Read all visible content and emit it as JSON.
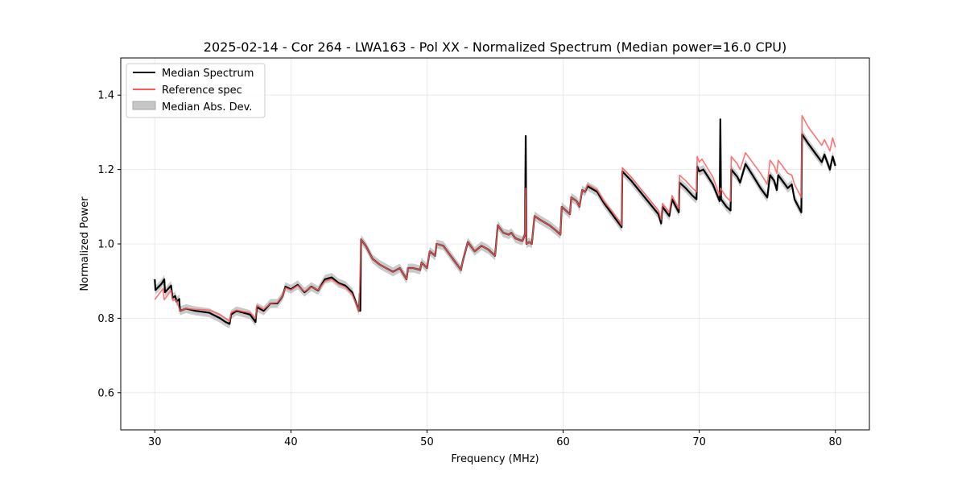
{
  "chart_data": {
    "type": "line",
    "title": "2025-02-14 - Cor 264 - LWA163 - Pol XX - Normalized Spectrum (Median power=16.0 CPU)",
    "xlabel": "Frequency (MHz)",
    "ylabel": "Normalized Power",
    "xlim": [
      27.5,
      82.5
    ],
    "ylim": [
      0.5,
      1.5
    ],
    "xticks": [
      30,
      40,
      50,
      60,
      70,
      80
    ],
    "yticks": [
      0.6,
      0.8,
      1.0,
      1.2,
      1.4
    ],
    "xtick_labels": [
      "30",
      "40",
      "50",
      "60",
      "70",
      "80"
    ],
    "ytick_labels": [
      "0.6",
      "0.8",
      "1.0",
      "1.2",
      "1.4"
    ],
    "grid": true,
    "legend_position": "top-left",
    "legend": [
      "Median Spectrum",
      "Reference spec",
      "Median Abs. Dev."
    ],
    "colors": {
      "median": "#000000",
      "reference": "#ff5a5a",
      "mad": "#b4b4b4"
    },
    "mad_halfwidth": 0.012,
    "series": [
      {
        "name": "Median Spectrum",
        "points": [
          [
            30.0,
            0.905
          ],
          [
            30.05,
            0.876
          ],
          [
            30.5,
            0.893
          ],
          [
            30.7,
            0.905
          ],
          [
            30.75,
            0.87
          ],
          [
            31.0,
            0.88
          ],
          [
            31.2,
            0.888
          ],
          [
            31.3,
            0.855
          ],
          [
            31.5,
            0.86
          ],
          [
            31.6,
            0.845
          ],
          [
            31.8,
            0.852
          ],
          [
            31.85,
            0.82
          ],
          [
            32.3,
            0.826
          ],
          [
            33.0,
            0.82
          ],
          [
            34.0,
            0.815
          ],
          [
            34.8,
            0.8
          ],
          [
            35.2,
            0.79
          ],
          [
            35.5,
            0.785
          ],
          [
            35.6,
            0.81
          ],
          [
            36.0,
            0.82
          ],
          [
            36.5,
            0.815
          ],
          [
            37.0,
            0.81
          ],
          [
            37.4,
            0.79
          ],
          [
            37.5,
            0.83
          ],
          [
            38.0,
            0.82
          ],
          [
            38.5,
            0.84
          ],
          [
            39.0,
            0.84
          ],
          [
            39.4,
            0.86
          ],
          [
            39.6,
            0.885
          ],
          [
            40.0,
            0.878
          ],
          [
            40.5,
            0.89
          ],
          [
            41.0,
            0.87
          ],
          [
            41.5,
            0.885
          ],
          [
            42.0,
            0.875
          ],
          [
            42.5,
            0.905
          ],
          [
            43.0,
            0.91
          ],
          [
            43.5,
            0.895
          ],
          [
            44.0,
            0.888
          ],
          [
            44.5,
            0.87
          ],
          [
            45.0,
            0.82
          ],
          [
            45.05,
            0.865
          ],
          [
            45.1,
            0.82
          ],
          [
            45.15,
            1.012
          ],
          [
            45.5,
            0.995
          ],
          [
            46.0,
            0.96
          ],
          [
            46.5,
            0.945
          ],
          [
            47.0,
            0.935
          ],
          [
            47.5,
            0.925
          ],
          [
            48.0,
            0.935
          ],
          [
            48.5,
            0.905
          ],
          [
            48.6,
            0.935
          ],
          [
            49.0,
            0.935
          ],
          [
            49.5,
            0.93
          ],
          [
            49.6,
            0.95
          ],
          [
            50.0,
            0.935
          ],
          [
            50.2,
            0.98
          ],
          [
            50.6,
            0.968
          ],
          [
            50.7,
            1.0
          ],
          [
            51.2,
            0.995
          ],
          [
            51.5,
            0.98
          ],
          [
            52.0,
            0.955
          ],
          [
            52.5,
            0.93
          ],
          [
            52.6,
            0.95
          ],
          [
            53.0,
            1.005
          ],
          [
            53.5,
            0.98
          ],
          [
            54.0,
            0.995
          ],
          [
            54.5,
            0.985
          ],
          [
            55.0,
            0.968
          ],
          [
            55.2,
            1.05
          ],
          [
            55.6,
            1.03
          ],
          [
            56.0,
            1.025
          ],
          [
            56.2,
            1.03
          ],
          [
            56.5,
            1.015
          ],
          [
            57.0,
            1.008
          ],
          [
            57.2,
            1.025
          ],
          [
            57.25,
            1.29
          ],
          [
            57.3,
            1.0
          ],
          [
            57.5,
            1.005
          ],
          [
            57.7,
            1.0
          ],
          [
            57.9,
            1.075
          ],
          [
            58.3,
            1.065
          ],
          [
            59.0,
            1.05
          ],
          [
            59.5,
            1.035
          ],
          [
            59.8,
            1.025
          ],
          [
            59.9,
            1.1
          ],
          [
            60.5,
            1.08
          ],
          [
            60.6,
            1.125
          ],
          [
            61.0,
            1.115
          ],
          [
            61.2,
            1.1
          ],
          [
            61.4,
            1.145
          ],
          [
            61.6,
            1.14
          ],
          [
            61.8,
            1.155
          ],
          [
            62.5,
            1.14
          ],
          [
            63.0,
            1.11
          ],
          [
            64.0,
            1.06
          ],
          [
            64.3,
            1.045
          ],
          [
            64.35,
            1.195
          ],
          [
            65.0,
            1.17
          ],
          [
            66.0,
            1.125
          ],
          [
            67.0,
            1.08
          ],
          [
            67.2,
            1.055
          ],
          [
            67.3,
            1.1
          ],
          [
            67.8,
            1.075
          ],
          [
            68.0,
            1.12
          ],
          [
            68.5,
            1.085
          ],
          [
            68.55,
            1.165
          ],
          [
            69.0,
            1.15
          ],
          [
            69.5,
            1.13
          ],
          [
            69.8,
            1.12
          ],
          [
            69.85,
            1.208
          ],
          [
            70.0,
            1.195
          ],
          [
            70.3,
            1.2
          ],
          [
            71.0,
            1.16
          ],
          [
            71.5,
            1.115
          ],
          [
            71.55,
            1.335
          ],
          [
            71.6,
            1.12
          ],
          [
            72.0,
            1.1
          ],
          [
            72.3,
            1.09
          ],
          [
            72.35,
            1.2
          ],
          [
            72.8,
            1.18
          ],
          [
            73.0,
            1.165
          ],
          [
            73.4,
            1.215
          ],
          [
            74.0,
            1.18
          ],
          [
            74.5,
            1.15
          ],
          [
            75.0,
            1.125
          ],
          [
            75.2,
            1.185
          ],
          [
            75.5,
            1.17
          ],
          [
            75.7,
            1.145
          ],
          [
            75.8,
            1.185
          ],
          [
            76.5,
            1.15
          ],
          [
            76.8,
            1.16
          ],
          [
            77.0,
            1.12
          ],
          [
            77.5,
            1.085
          ],
          [
            77.55,
            1.295
          ],
          [
            78.0,
            1.27
          ],
          [
            78.5,
            1.245
          ],
          [
            79.0,
            1.22
          ],
          [
            79.2,
            1.24
          ],
          [
            79.6,
            1.2
          ],
          [
            79.8,
            1.235
          ],
          [
            80.0,
            1.21
          ]
        ]
      },
      {
        "name": "Reference spec",
        "points": [
          [
            30.0,
            0.85
          ],
          [
            30.3,
            0.865
          ],
          [
            30.6,
            0.88
          ],
          [
            30.7,
            0.85
          ],
          [
            31.0,
            0.865
          ],
          [
            31.2,
            0.875
          ],
          [
            31.3,
            0.85
          ],
          [
            31.6,
            0.848
          ],
          [
            31.85,
            0.82
          ],
          [
            32.3,
            0.826
          ],
          [
            33.0,
            0.824
          ],
          [
            34.0,
            0.822
          ],
          [
            34.8,
            0.81
          ],
          [
            35.2,
            0.8
          ],
          [
            35.5,
            0.792
          ],
          [
            35.6,
            0.815
          ],
          [
            36.0,
            0.822
          ],
          [
            36.5,
            0.818
          ],
          [
            37.0,
            0.815
          ],
          [
            37.4,
            0.8
          ],
          [
            37.5,
            0.835
          ],
          [
            38.0,
            0.824
          ],
          [
            38.5,
            0.84
          ],
          [
            39.0,
            0.842
          ],
          [
            39.4,
            0.86
          ],
          [
            39.6,
            0.882
          ],
          [
            40.0,
            0.876
          ],
          [
            40.5,
            0.888
          ],
          [
            41.0,
            0.872
          ],
          [
            41.5,
            0.884
          ],
          [
            42.0,
            0.876
          ],
          [
            42.5,
            0.9
          ],
          [
            43.0,
            0.905
          ],
          [
            43.5,
            0.892
          ],
          [
            44.0,
            0.884
          ],
          [
            44.5,
            0.865
          ],
          [
            45.0,
            0.82
          ],
          [
            45.15,
            1.012
          ],
          [
            45.5,
            0.995
          ],
          [
            46.0,
            0.96
          ],
          [
            46.5,
            0.945
          ],
          [
            47.0,
            0.935
          ],
          [
            47.5,
            0.925
          ],
          [
            48.0,
            0.935
          ],
          [
            48.5,
            0.905
          ],
          [
            48.6,
            0.935
          ],
          [
            49.0,
            0.935
          ],
          [
            49.5,
            0.93
          ],
          [
            49.6,
            0.95
          ],
          [
            50.0,
            0.935
          ],
          [
            50.2,
            0.98
          ],
          [
            50.6,
            0.968
          ],
          [
            50.7,
            1.0
          ],
          [
            51.2,
            0.995
          ],
          [
            51.5,
            0.98
          ],
          [
            52.0,
            0.955
          ],
          [
            52.5,
            0.93
          ],
          [
            52.6,
            0.95
          ],
          [
            53.0,
            1.005
          ],
          [
            53.5,
            0.98
          ],
          [
            54.0,
            0.995
          ],
          [
            54.5,
            0.985
          ],
          [
            55.0,
            0.968
          ],
          [
            55.2,
            1.05
          ],
          [
            55.6,
            1.03
          ],
          [
            56.0,
            1.025
          ],
          [
            56.2,
            1.03
          ],
          [
            56.5,
            1.015
          ],
          [
            57.0,
            1.008
          ],
          [
            57.2,
            1.025
          ],
          [
            57.25,
            1.15
          ],
          [
            57.3,
            1.0
          ],
          [
            57.5,
            1.005
          ],
          [
            57.7,
            1.0
          ],
          [
            57.9,
            1.075
          ],
          [
            58.3,
            1.065
          ],
          [
            59.0,
            1.05
          ],
          [
            59.5,
            1.035
          ],
          [
            59.8,
            1.025
          ],
          [
            59.9,
            1.1
          ],
          [
            60.5,
            1.08
          ],
          [
            60.6,
            1.125
          ],
          [
            61.0,
            1.115
          ],
          [
            61.2,
            1.1
          ],
          [
            61.4,
            1.145
          ],
          [
            61.6,
            1.14
          ],
          [
            61.8,
            1.16
          ],
          [
            62.5,
            1.145
          ],
          [
            63.0,
            1.115
          ],
          [
            64.0,
            1.068
          ],
          [
            64.3,
            1.05
          ],
          [
            64.35,
            1.205
          ],
          [
            65.0,
            1.18
          ],
          [
            66.0,
            1.135
          ],
          [
            67.0,
            1.09
          ],
          [
            67.2,
            1.065
          ],
          [
            67.3,
            1.108
          ],
          [
            67.8,
            1.085
          ],
          [
            68.0,
            1.13
          ],
          [
            68.5,
            1.095
          ],
          [
            68.55,
            1.185
          ],
          [
            69.0,
            1.17
          ],
          [
            69.5,
            1.15
          ],
          [
            69.8,
            1.14
          ],
          [
            69.85,
            1.235
          ],
          [
            70.0,
            1.22
          ],
          [
            70.2,
            1.228
          ],
          [
            70.5,
            1.21
          ],
          [
            71.0,
            1.18
          ],
          [
            71.5,
            1.13
          ],
          [
            71.55,
            1.15
          ],
          [
            72.0,
            1.125
          ],
          [
            72.3,
            1.115
          ],
          [
            72.35,
            1.235
          ],
          [
            72.8,
            1.215
          ],
          [
            73.0,
            1.2
          ],
          [
            73.4,
            1.245
          ],
          [
            74.0,
            1.215
          ],
          [
            74.5,
            1.19
          ],
          [
            75.0,
            1.16
          ],
          [
            75.2,
            1.225
          ],
          [
            75.5,
            1.21
          ],
          [
            75.7,
            1.19
          ],
          [
            75.8,
            1.225
          ],
          [
            76.5,
            1.19
          ],
          [
            76.8,
            1.185
          ],
          [
            77.0,
            1.16
          ],
          [
            77.5,
            1.125
          ],
          [
            77.55,
            1.345
          ],
          [
            78.0,
            1.315
          ],
          [
            78.5,
            1.29
          ],
          [
            79.0,
            1.265
          ],
          [
            79.2,
            1.28
          ],
          [
            79.6,
            1.25
          ],
          [
            79.8,
            1.285
          ],
          [
            80.0,
            1.26
          ]
        ]
      }
    ]
  }
}
